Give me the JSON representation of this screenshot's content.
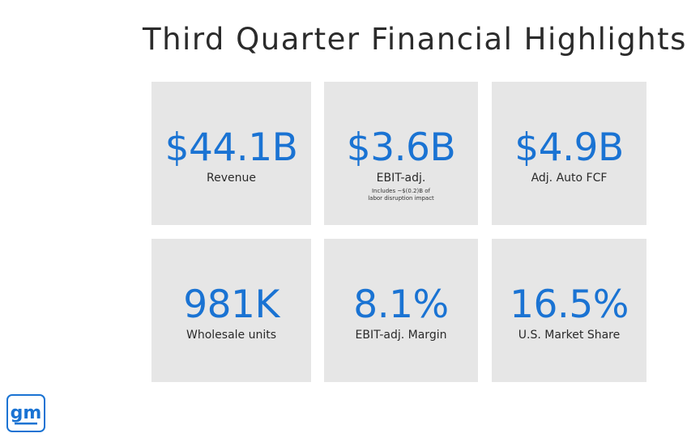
{
  "slide": {
    "title": "Third Quarter Financial Highlights"
  },
  "tiles": [
    {
      "value": "$44.1B",
      "label": "Revenue"
    },
    {
      "value": "$3.6B",
      "label": "EBIT-adj.",
      "note_line1": "Includes ~$(0.2)B of",
      "note_line2": "labor disruption impact"
    },
    {
      "value": "$4.9B",
      "label": "Adj. Auto FCF"
    },
    {
      "value": "981K",
      "label": "Wholesale units"
    },
    {
      "value": "8.1%",
      "label": "EBIT-adj. Margin"
    },
    {
      "value": "16.5%",
      "label": "U.S. Market Share"
    }
  ],
  "logo": {
    "text": "gm",
    "icon": "gm-logo-icon",
    "color": "#1a73d3"
  },
  "colors": {
    "accent": "#1a73d3",
    "tile_background": "#e6e6e6"
  }
}
